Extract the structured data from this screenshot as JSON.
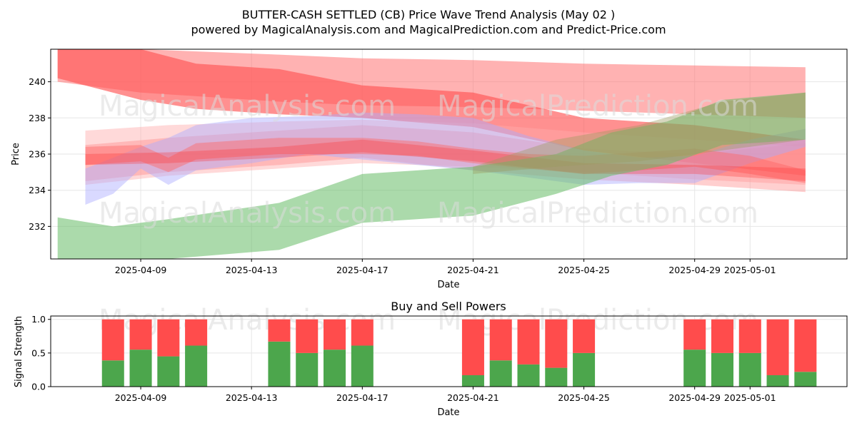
{
  "chart_data": [
    {
      "type": "area",
      "title": "BUTTER-CASH SETTLED (CB) Price Wave Trend Analysis (May 02 )",
      "subtitle": "powered by MagicalAnalysis.com and MagicalPrediction.com and Predict-Price.com",
      "xlabel": "Date",
      "ylabel": "Price",
      "xlim": [
        "2025-04-05T18:00",
        "2025-05-04T12:00"
      ],
      "ylim": [
        230.2,
        241.8
      ],
      "x_ticks": [
        "2025-04-09",
        "2025-04-13",
        "2025-04-17",
        "2025-04-21",
        "2025-04-25",
        "2025-04-29",
        "2025-05-01"
      ],
      "y_ticks": [
        232,
        234,
        236,
        238,
        240
      ],
      "grid": true,
      "watermarks": [
        "MagicalAnalysis.com",
        "MagicalPrediction.com"
      ],
      "bands": [
        {
          "color": "#ff6666",
          "opacity": 0.5,
          "x": [
            "2025-04-06",
            "2025-04-09",
            "2025-04-14",
            "2025-04-17",
            "2025-04-21",
            "2025-04-25",
            "2025-04-29",
            "2025-05-03"
          ],
          "upper": [
            241.8,
            241.8,
            241.5,
            241.3,
            241.2,
            241.0,
            240.9,
            240.8
          ],
          "lower": [
            240.0,
            239.4,
            238.9,
            238.7,
            238.6,
            238.4,
            238.2,
            238.0
          ]
        },
        {
          "color": "#ff5555",
          "opacity": 0.65,
          "x": [
            "2025-04-06",
            "2025-04-09",
            "2025-04-11",
            "2025-04-14",
            "2025-04-17",
            "2025-04-21",
            "2025-04-25",
            "2025-04-29",
            "2025-05-03"
          ],
          "upper": [
            241.8,
            241.8,
            241.0,
            240.7,
            239.8,
            239.4,
            238.0,
            237.6,
            236.8
          ],
          "lower": [
            240.2,
            239.0,
            238.5,
            238.2,
            238.0,
            237.5,
            236.2,
            235.5,
            234.8
          ]
        },
        {
          "color": "#ffaaaa",
          "opacity": 0.45,
          "x": [
            "2025-04-07",
            "2025-04-10",
            "2025-04-14",
            "2025-04-17",
            "2025-04-21",
            "2025-04-25",
            "2025-04-29",
            "2025-05-03"
          ],
          "upper": [
            237.3,
            237.6,
            237.8,
            237.9,
            237.7,
            237.2,
            236.8,
            236.4
          ],
          "lower": [
            234.3,
            234.8,
            235.2,
            235.5,
            235.3,
            235.0,
            234.6,
            234.3
          ]
        },
        {
          "color": "#ff8888",
          "opacity": 0.4,
          "x": [
            "2025-04-07",
            "2025-04-10",
            "2025-04-14",
            "2025-04-17",
            "2025-04-21",
            "2025-04-25",
            "2025-04-29",
            "2025-05-03"
          ],
          "upper": [
            236.5,
            236.9,
            237.3,
            237.6,
            237.2,
            236.3,
            236.0,
            236.6
          ],
          "lower": [
            234.5,
            235.0,
            235.4,
            235.8,
            235.1,
            234.6,
            234.3,
            233.9
          ]
        },
        {
          "color": "#aaaaff",
          "opacity": 0.45,
          "x": [
            "2025-04-07",
            "2025-04-08",
            "2025-04-09",
            "2025-04-10",
            "2025-04-11",
            "2025-04-13",
            "2025-04-15",
            "2025-04-17",
            "2025-04-19",
            "2025-04-21",
            "2025-04-23",
            "2025-04-25",
            "2025-04-27",
            "2025-04-29",
            "2025-05-01",
            "2025-05-03"
          ],
          "upper": [
            235.2,
            235.8,
            236.4,
            236.9,
            237.6,
            238.0,
            238.1,
            238.3,
            238.2,
            238.0,
            237.0,
            236.2,
            235.8,
            235.9,
            236.8,
            237.4
          ],
          "lower": [
            233.2,
            233.8,
            235.2,
            234.3,
            235.1,
            235.5,
            236.0,
            235.7,
            235.4,
            235.1,
            234.7,
            234.3,
            234.4,
            234.4,
            235.5,
            236.4
          ]
        },
        {
          "color": "#ff6666",
          "opacity": 0.45,
          "x": [
            "2025-04-07",
            "2025-04-09",
            "2025-04-10",
            "2025-04-11",
            "2025-04-14",
            "2025-04-17",
            "2025-04-19",
            "2025-04-21",
            "2025-04-23",
            "2025-04-25",
            "2025-04-27",
            "2025-04-29",
            "2025-05-01",
            "2025-05-03"
          ],
          "upper": [
            236.4,
            236.5,
            235.8,
            236.6,
            236.9,
            236.9,
            236.7,
            236.3,
            236.0,
            235.9,
            236.1,
            236.3,
            235.9,
            235.1
          ],
          "lower": [
            235.4,
            235.6,
            235.0,
            235.7,
            236.0,
            236.0,
            235.9,
            235.5,
            235.2,
            234.9,
            235.1,
            235.3,
            234.9,
            234.4
          ]
        },
        {
          "color": "#ff3333",
          "opacity": 0.3,
          "x": [
            "2025-04-07",
            "2025-04-10",
            "2025-04-14",
            "2025-04-17",
            "2025-04-21",
            "2025-04-25",
            "2025-04-29",
            "2025-05-03"
          ],
          "upper": [
            236.0,
            236.1,
            236.4,
            236.8,
            236.2,
            235.5,
            235.4,
            235.2
          ],
          "lower": [
            235.4,
            235.5,
            235.8,
            236.1,
            235.6,
            234.9,
            234.9,
            234.5
          ]
        },
        {
          "color": "#66bb66",
          "opacity": 0.55,
          "x": [
            "2025-04-06",
            "2025-04-08",
            "2025-04-10",
            "2025-04-14",
            "2025-04-17",
            "2025-04-21",
            "2025-04-24",
            "2025-04-26",
            "2025-04-28",
            "2025-04-30",
            "2025-05-03"
          ],
          "upper": [
            232.5,
            232.0,
            232.4,
            233.3,
            234.9,
            235.3,
            236.0,
            237.2,
            237.8,
            239.0,
            239.4
          ],
          "lower": [
            230.2,
            230.2,
            230.2,
            230.7,
            232.2,
            232.6,
            233.8,
            234.8,
            235.4,
            236.5,
            236.8
          ]
        },
        {
          "color": "#9a9a60",
          "opacity": 0.4,
          "x": [
            "2025-04-21",
            "2025-04-24",
            "2025-04-27",
            "2025-04-30",
            "2025-05-03"
          ],
          "upper": [
            235.3,
            236.8,
            237.6,
            238.9,
            239.4
          ],
          "lower": [
            234.9,
            235.3,
            235.6,
            236.2,
            236.8
          ]
        }
      ]
    },
    {
      "type": "bar",
      "title": "Buy and Sell Powers",
      "xlabel": "Date",
      "ylabel": "Signal Strength",
      "ylim": [
        0,
        1.05
      ],
      "xlim": [
        "2025-04-05T18:00",
        "2025-05-04T12:00"
      ],
      "x_ticks": [
        "2025-04-09",
        "2025-04-13",
        "2025-04-17",
        "2025-04-21",
        "2025-04-25",
        "2025-04-29",
        "2025-05-01"
      ],
      "y_ticks": [
        "0.0",
        "0.5",
        "1.0"
      ],
      "grid": true,
      "colors": {
        "buy": "#4ca64c",
        "sell": "#ff4c4c"
      },
      "categories": [
        "2025-04-08",
        "2025-04-09",
        "2025-04-10",
        "2025-04-11",
        "2025-04-14",
        "2025-04-15",
        "2025-04-16",
        "2025-04-17",
        "2025-04-21",
        "2025-04-22",
        "2025-04-23",
        "2025-04-24",
        "2025-04-25",
        "2025-04-29",
        "2025-04-30",
        "2025-05-01",
        "2025-05-02",
        "2025-05-03"
      ],
      "series": [
        {
          "name": "Buy",
          "values": [
            0.39,
            0.55,
            0.45,
            0.61,
            0.67,
            0.5,
            0.55,
            0.61,
            0.17,
            0.39,
            0.33,
            0.28,
            0.5,
            0.55,
            0.5,
            0.5,
            0.17,
            0.22
          ]
        },
        {
          "name": "Sell",
          "values": [
            0.61,
            0.45,
            0.55,
            0.39,
            0.33,
            0.5,
            0.45,
            0.39,
            0.83,
            0.61,
            0.67,
            0.72,
            0.5,
            0.45,
            0.5,
            0.5,
            0.83,
            0.78
          ]
        }
      ],
      "watermarks": [
        "MagicalAnalysis.com",
        "MagicalPrediction.com"
      ]
    }
  ]
}
